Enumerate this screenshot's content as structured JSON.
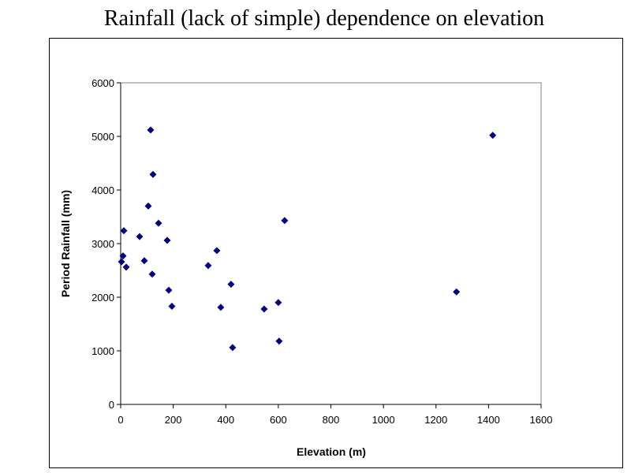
{
  "chart_data": {
    "type": "scatter",
    "title": "Rainfall (lack of simple) dependence on elevation",
    "xlabel": "Elevation (m)",
    "ylabel": "Period Rainfall (mm)",
    "xlim": [
      0,
      1600
    ],
    "ylim": [
      0,
      6000
    ],
    "xticks": [
      0,
      200,
      400,
      600,
      800,
      1000,
      1200,
      1400,
      1600
    ],
    "yticks": [
      0,
      1000,
      2000,
      3000,
      4000,
      5000,
      6000
    ],
    "grid": false,
    "marker_color": "#000080",
    "plot_background": "#ffffff",
    "points": [
      [
        114,
        5120
      ],
      [
        123,
        4290
      ],
      [
        105,
        3700
      ],
      [
        144,
        3380
      ],
      [
        12,
        3240
      ],
      [
        72,
        3130
      ],
      [
        177,
        3060
      ],
      [
        9,
        2770
      ],
      [
        3,
        2660
      ],
      [
        90,
        2680
      ],
      [
        21,
        2560
      ],
      [
        120,
        2430
      ],
      [
        183,
        2130
      ],
      [
        195,
        1830
      ],
      [
        366,
        2870
      ],
      [
        333,
        2590
      ],
      [
        420,
        2240
      ],
      [
        381,
        1810
      ],
      [
        426,
        1060
      ],
      [
        546,
        1780
      ],
      [
        600,
        1900
      ],
      [
        603,
        1180
      ],
      [
        624,
        3430
      ],
      [
        1278,
        2100
      ],
      [
        1416,
        5020
      ]
    ]
  }
}
